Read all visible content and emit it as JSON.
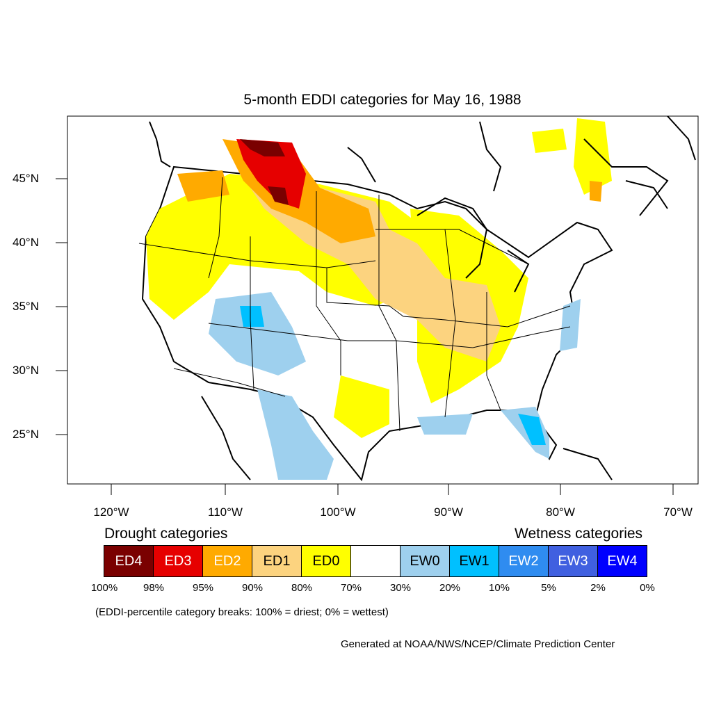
{
  "title": "5-month EDDI categories for May 16, 1988",
  "lat_labels": [
    "45°N",
    "40°N",
    "35°N",
    "30°N",
    "25°N"
  ],
  "lon_labels": [
    "120°W",
    "110°W",
    "100°W",
    "90°W",
    "80°W",
    "70°W"
  ],
  "legend": {
    "drought_heading": "Drought categories",
    "wetness_heading": "Wetness categories",
    "categories": [
      {
        "label": "ED4",
        "color": "#7a0000",
        "text_color": "#ffffff"
      },
      {
        "label": "ED3",
        "color": "#e60000",
        "text_color": "#ffffff"
      },
      {
        "label": "ED2",
        "color": "#ffaa00",
        "text_color": "#ffffff"
      },
      {
        "label": "ED1",
        "color": "#fcd37f",
        "text_color": "#000000"
      },
      {
        "label": "ED0",
        "color": "#ffff00",
        "text_color": "#000000"
      },
      {
        "label": "",
        "color": "#ffffff",
        "text_color": "#000000"
      },
      {
        "label": "EW0",
        "color": "#9ed0ee",
        "text_color": "#000000"
      },
      {
        "label": "EW1",
        "color": "#00c0ff",
        "text_color": "#000000"
      },
      {
        "label": "EW2",
        "color": "#2f8cf0",
        "text_color": "#ffffff"
      },
      {
        "label": "EW3",
        "color": "#4060e0",
        "text_color": "#ffffff"
      },
      {
        "label": "EW4",
        "color": "#0000ff",
        "text_color": "#ffffff"
      }
    ],
    "breaks": [
      "100%",
      "98%",
      "95%",
      "90%",
      "80%",
      "70%",
      "30%",
      "20%",
      "10%",
      "5%",
      "2%",
      "0%"
    ]
  },
  "note": "(EDDI-percentile category breaks: 100% = driest; 0% = wettest)",
  "credit": "Generated at NOAA/NWS/NCEP/Climate Prediction Center"
}
